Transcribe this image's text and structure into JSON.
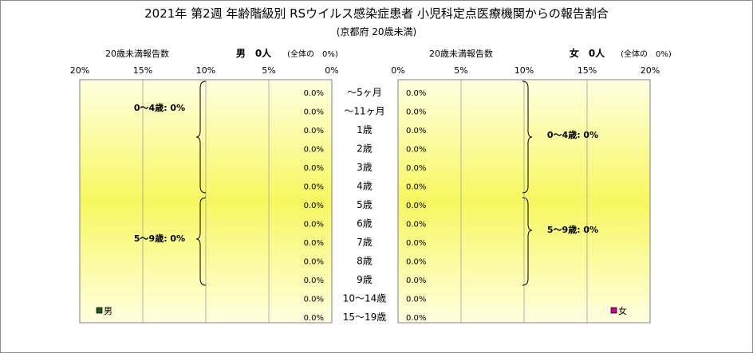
{
  "chart_data": {
    "type": "bar",
    "title": "2021年 第2週 年齢階級別 RSウイルス感染症患者 小児科定点医療機関からの報告割合",
    "subtitle": "(京都府 20歳未満)",
    "categories": [
      "～5ヶ月",
      "～11ヶ月",
      "1歳",
      "2歳",
      "3歳",
      "4歳",
      "5歳",
      "6歳",
      "7歳",
      "8歳",
      "9歳",
      "10～14歳",
      "15～19歳"
    ],
    "axis_label": "20歳未満報告数",
    "xlim": [
      0,
      20
    ],
    "ticks": [
      "20%",
      "15%",
      "10%",
      "5%",
      "0%"
    ],
    "ticks_right": [
      "0%",
      "5%",
      "10%",
      "15%",
      "20%"
    ],
    "tick_values": [
      20,
      15,
      10,
      5,
      0
    ],
    "tick_values_right": [
      0,
      5,
      10,
      15,
      20
    ],
    "series": [
      {
        "name": "男",
        "header": "男　0人",
        "share_note": "(全体の　0%)",
        "values": [
          0,
          0,
          0,
          0,
          0,
          0,
          0,
          0,
          0,
          0,
          0,
          0,
          0
        ],
        "value_labels": [
          "0.0%",
          "0.0%",
          "0.0%",
          "0.0%",
          "0.0%",
          "0.0%",
          "0.0%",
          "0.0%",
          "0.0%",
          "0.0%",
          "0.0%",
          "0.0%",
          "0.0%"
        ],
        "color": "#1f5c1f"
      },
      {
        "name": "女",
        "header": "女　0人",
        "share_note": "(全体の　0%)",
        "values": [
          0,
          0,
          0,
          0,
          0,
          0,
          0,
          0,
          0,
          0,
          0,
          0,
          0
        ],
        "value_labels": [
          "0.0%",
          "0.0%",
          "0.0%",
          "0.0%",
          "0.0%",
          "0.0%",
          "0.0%",
          "0.0%",
          "0.0%",
          "0.0%",
          "0.0%",
          "0.0%",
          "0.0%"
        ],
        "color": "#cc0099"
      }
    ],
    "annotations": {
      "left": [
        "0～4歳: 0%",
        "5～9歳: 0%"
      ],
      "right": [
        "0～4歳: 0%",
        "5～9歳: 0%"
      ]
    },
    "grid": true,
    "legend": "bottom-corners",
    "plot_gradient": [
      "#ffffe0",
      "#f7f760",
      "#ffffe0"
    ]
  }
}
